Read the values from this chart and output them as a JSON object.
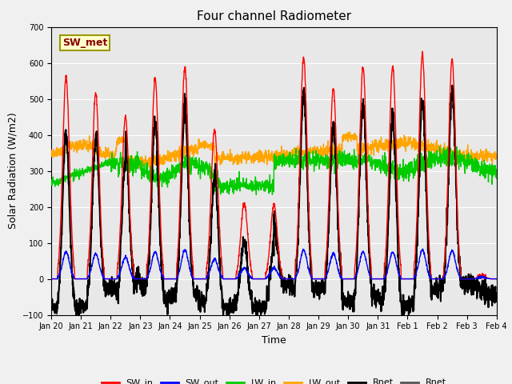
{
  "title": "Four channel Radiometer",
  "xlabel": "Time",
  "ylabel": "Solar Radiation (W/m2)",
  "ylim": [
    -100,
    700
  ],
  "yticks": [
    -100,
    0,
    100,
    200,
    300,
    400,
    500,
    600,
    700
  ],
  "plot_bg": "#e8e8e8",
  "fig_bg": "#f0f0f0",
  "colors": {
    "SW_in": "#ff0000",
    "SW_out": "#0000ff",
    "LW_in": "#00cc00",
    "LW_out": "#ffa500",
    "Rnet1": "#000000",
    "Rnet2": "#555555"
  },
  "annotation": {
    "text": "SW_met",
    "facecolor": "#ffffcc",
    "edgecolor": "#999900",
    "textcolor": "#880000",
    "fontsize": 9,
    "fontweight": "bold"
  },
  "xtick_labels": [
    "Jan 20",
    "Jan 21",
    "Jan 22",
    "Jan 23",
    "Jan 24",
    "Jan 25",
    "Jan 26",
    "Jan 27",
    "Jan 28",
    "Jan 29",
    "Jan 30",
    "Jan 31",
    "Feb 1",
    "Feb 2",
    "Feb 3",
    "Feb 4"
  ],
  "grid_color": "#ffffff",
  "day_peaks_SW_in": [
    560,
    515,
    450,
    558,
    588,
    415,
    210,
    205,
    615,
    530,
    588,
    590,
    625,
    610,
    10
  ],
  "day_peaks_SW_out": [
    75,
    70,
    60,
    75,
    80,
    55,
    30,
    30,
    80,
    70,
    75,
    75,
    80,
    78,
    5
  ],
  "lw_line": 1.0,
  "lw_rnet": 1.5,
  "title_fontsize": 11,
  "axis_fontsize": 9,
  "tick_fontsize": 7,
  "legend_fontsize": 8
}
